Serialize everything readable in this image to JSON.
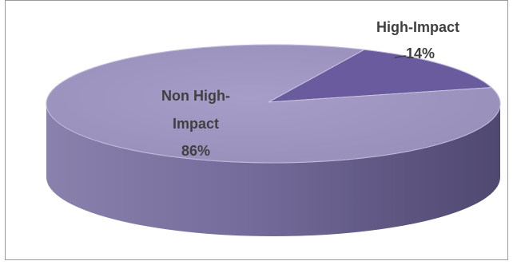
{
  "chart_data": {
    "type": "pie",
    "style": "3d",
    "categories": [
      "High-Impact",
      "Non High-Impact"
    ],
    "values": [
      14,
      86
    ],
    "unit": "%",
    "labels": [
      {
        "category": "High-Impact",
        "lines": [
          "High-Impact",
          "14%"
        ]
      },
      {
        "category": "Non High-Impact",
        "lines": [
          "Non High-",
          "Impact",
          "86%"
        ]
      }
    ],
    "colors": {
      "High-Impact": "#6a5a9e",
      "Non High-Impact": "#9e95c2"
    },
    "legend": "none",
    "title": ""
  }
}
